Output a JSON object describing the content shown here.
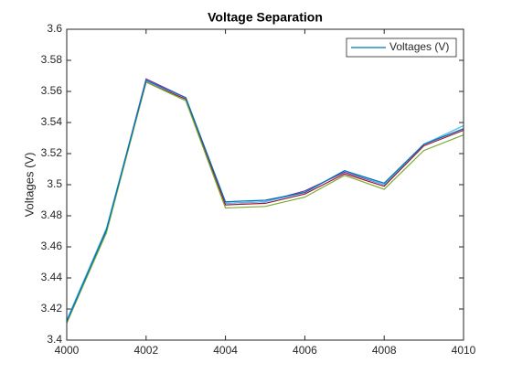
{
  "chart_data": {
    "type": "line",
    "title": "Voltage Separation",
    "ylabel": "Voltages (V)",
    "x": [
      4000,
      4001,
      4002,
      4003,
      4004,
      4005,
      4006,
      4007,
      4008,
      4009,
      4010
    ],
    "xlim": [
      4000,
      4010
    ],
    "xticks": [
      4000,
      4002,
      4004,
      4006,
      4008,
      4010
    ],
    "ylim": [
      3.4,
      3.6
    ],
    "yticks": [
      3.4,
      3.42,
      3.44,
      3.46,
      3.48,
      3.5,
      3.52,
      3.54,
      3.56,
      3.58,
      3.6
    ],
    "legend": "northeast",
    "series": [
      {
        "name": "Voltages (V)",
        "color": "#0072BD",
        "values": [
          3.412,
          3.471,
          3.567,
          3.556,
          3.489,
          3.49,
          3.495,
          3.509,
          3.501,
          3.526,
          3.536
        ]
      },
      {
        "color": "#77AC30",
        "values": [
          3.411,
          3.469,
          3.566,
          3.554,
          3.485,
          3.486,
          3.492,
          3.506,
          3.497,
          3.522,
          3.532
        ]
      },
      {
        "color": "#A2142F",
        "values": [
          3.411,
          3.47,
          3.566,
          3.555,
          3.487,
          3.488,
          3.494,
          3.507,
          3.499,
          3.525,
          3.535
        ]
      },
      {
        "color": "#4DBEEE",
        "values": [
          3.413,
          3.472,
          3.567,
          3.556,
          3.488,
          3.489,
          3.495,
          3.509,
          3.5,
          3.526,
          3.538
        ]
      },
      {
        "color": "#7E2F8E",
        "values": [
          3.412,
          3.471,
          3.568,
          3.556,
          3.488,
          3.489,
          3.496,
          3.508,
          3.5,
          3.526,
          3.536
        ]
      }
    ]
  }
}
